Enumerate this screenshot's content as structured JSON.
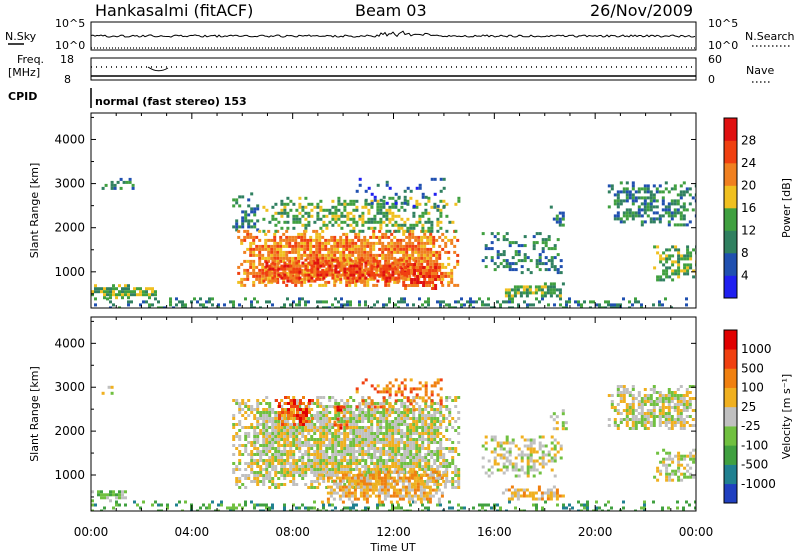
{
  "header": {
    "station": "Hankasalmi (fitACF)",
    "beam": "Beam 03",
    "date": "26/Nov/2009"
  },
  "strip_panels": {
    "nsky_label": "N.Sky",
    "nsky_ticks": [
      "10^5",
      "10^0"
    ],
    "nsearch_label": "N.Search",
    "nsearch_ticks": [
      "10^5",
      "10^0"
    ],
    "freq_label": "Freq.",
    "freq_unit": "[MHz]",
    "freq_ticks": [
      "18",
      "8"
    ],
    "nave_label": "Nave",
    "nave_ticks": [
      "60",
      "0"
    ],
    "cpid_label": "CPID",
    "cpid_text": "normal (fast stereo) 153"
  },
  "chart_data": [
    {
      "type": "heatmap",
      "name": "power-panel",
      "xlabel": "Time UT",
      "ylabel": "Slant Range [km]",
      "x_ticks": [
        "00:00",
        "04:00",
        "08:00",
        "12:00",
        "16:00",
        "20:00",
        "00:00"
      ],
      "xlim_hours": [
        0,
        24
      ],
      "y_ticks": [
        1000,
        2000,
        3000,
        4000
      ],
      "ylim_km": [
        180,
        4600
      ],
      "colorbar": {
        "label": "Power [dB]",
        "range": [
          0,
          32
        ],
        "ticks": [
          4,
          8,
          12,
          16,
          20,
          24,
          28
        ],
        "colors": [
          "#2020f0",
          "#2050b0",
          "#308060",
          "#40a040",
          "#f0c020",
          "#f08020",
          "#f04010",
          "#e01010"
        ]
      },
      "regions": [
        {
          "t0": 0.0,
          "t1": 24.0,
          "r0": 180,
          "r1": 420,
          "level": 2,
          "density": 0.35
        },
        {
          "t0": 0.0,
          "t1": 2.6,
          "r0": 420,
          "r1": 720,
          "level": 3,
          "density": 0.8
        },
        {
          "t0": 0.3,
          "t1": 1.7,
          "r0": 2880,
          "r1": 3130,
          "level": 2,
          "density": 0.5
        },
        {
          "t0": 5.6,
          "t1": 6.6,
          "r0": 1900,
          "r1": 2800,
          "level": 2,
          "density": 0.5
        },
        {
          "t0": 5.8,
          "t1": 14.6,
          "r0": 700,
          "r1": 1950,
          "level": 5,
          "density": 0.85
        },
        {
          "t0": 6.8,
          "t1": 12.8,
          "r0": 800,
          "r1": 1300,
          "level": 6,
          "density": 0.8
        },
        {
          "t0": 12.3,
          "t1": 13.9,
          "r0": 650,
          "r1": 1200,
          "level": 6,
          "density": 0.9
        },
        {
          "t0": 6.8,
          "t1": 14.6,
          "r0": 1900,
          "r1": 2700,
          "level": 3,
          "density": 0.5
        },
        {
          "t0": 10.5,
          "t1": 14.0,
          "r0": 2500,
          "r1": 3200,
          "level": 1,
          "density": 0.2
        },
        {
          "t0": 15.5,
          "t1": 18.6,
          "r0": 1000,
          "r1": 1900,
          "level": 2,
          "density": 0.45
        },
        {
          "t0": 16.3,
          "t1": 18.7,
          "r0": 450,
          "r1": 760,
          "level": 3,
          "density": 0.75
        },
        {
          "t0": 18.2,
          "t1": 18.8,
          "r0": 2050,
          "r1": 2500,
          "level": 2,
          "density": 0.4
        },
        {
          "t0": 20.5,
          "t1": 24.0,
          "r0": 2050,
          "r1": 3050,
          "level": 2,
          "density": 0.55
        },
        {
          "t0": 22.3,
          "t1": 24.0,
          "r0": 850,
          "r1": 1600,
          "level": 3,
          "density": 0.6
        }
      ]
    },
    {
      "type": "heatmap",
      "name": "velocity-panel",
      "xlabel": "Time UT",
      "ylabel": "Slant Range [km]",
      "x_ticks": [
        "00:00",
        "04:00",
        "08:00",
        "12:00",
        "16:00",
        "20:00",
        "00:00"
      ],
      "xlim_hours": [
        0,
        24
      ],
      "y_ticks": [
        1000,
        2000,
        3000,
        4000
      ],
      "ylim_km": [
        180,
        4600
      ],
      "colorbar": {
        "label": "Velocity [m s⁻¹]",
        "ticks": [
          "1000",
          "500",
          "100",
          "25",
          "-25",
          "-100",
          "-500",
          "-1000"
        ],
        "colors": [
          "#2040c0",
          "#208090",
          "#40a040",
          "#70c040",
          "#c0c0c0",
          "#f0b020",
          "#f08010",
          "#f04010",
          "#e00000"
        ]
      },
      "regions": [
        {
          "t0": 0.0,
          "t1": 24.0,
          "r0": 180,
          "r1": 420,
          "level": 2,
          "density": 0.35
        },
        {
          "t0": 0.0,
          "t1": 1.4,
          "r0": 420,
          "r1": 720,
          "level": 3,
          "density": 0.8
        },
        {
          "t0": 0.3,
          "t1": 0.9,
          "r0": 2880,
          "r1": 3100,
          "level": 4,
          "density": 0.5
        },
        {
          "t0": 5.6,
          "t1": 14.6,
          "r0": 700,
          "r1": 2800,
          "level": 4,
          "density": 0.85
        },
        {
          "t0": 7.3,
          "t1": 8.8,
          "r0": 2150,
          "r1": 2800,
          "level": 7,
          "density": 0.55
        },
        {
          "t0": 9.5,
          "t1": 10.2,
          "r0": 2050,
          "r1": 2650,
          "level": 7,
          "density": 0.4
        },
        {
          "t0": 10.5,
          "t1": 14.0,
          "r0": 2500,
          "r1": 3200,
          "level": 6,
          "density": 0.3
        },
        {
          "t0": 9.0,
          "t1": 14.0,
          "r0": 400,
          "r1": 1100,
          "level": 5,
          "density": 0.85
        },
        {
          "t0": 15.5,
          "t1": 18.6,
          "r0": 1000,
          "r1": 1900,
          "level": 4,
          "density": 0.5
        },
        {
          "t0": 16.3,
          "t1": 18.7,
          "r0": 450,
          "r1": 760,
          "level": 5,
          "density": 0.75
        },
        {
          "t0": 18.2,
          "t1": 18.8,
          "r0": 2050,
          "r1": 2500,
          "level": 4,
          "density": 0.4
        },
        {
          "t0": 20.5,
          "t1": 24.0,
          "r0": 2050,
          "r1": 3050,
          "level": 4,
          "density": 0.7
        },
        {
          "t0": 22.3,
          "t1": 24.0,
          "r0": 850,
          "r1": 1600,
          "level": 4,
          "density": 0.6
        }
      ]
    }
  ]
}
